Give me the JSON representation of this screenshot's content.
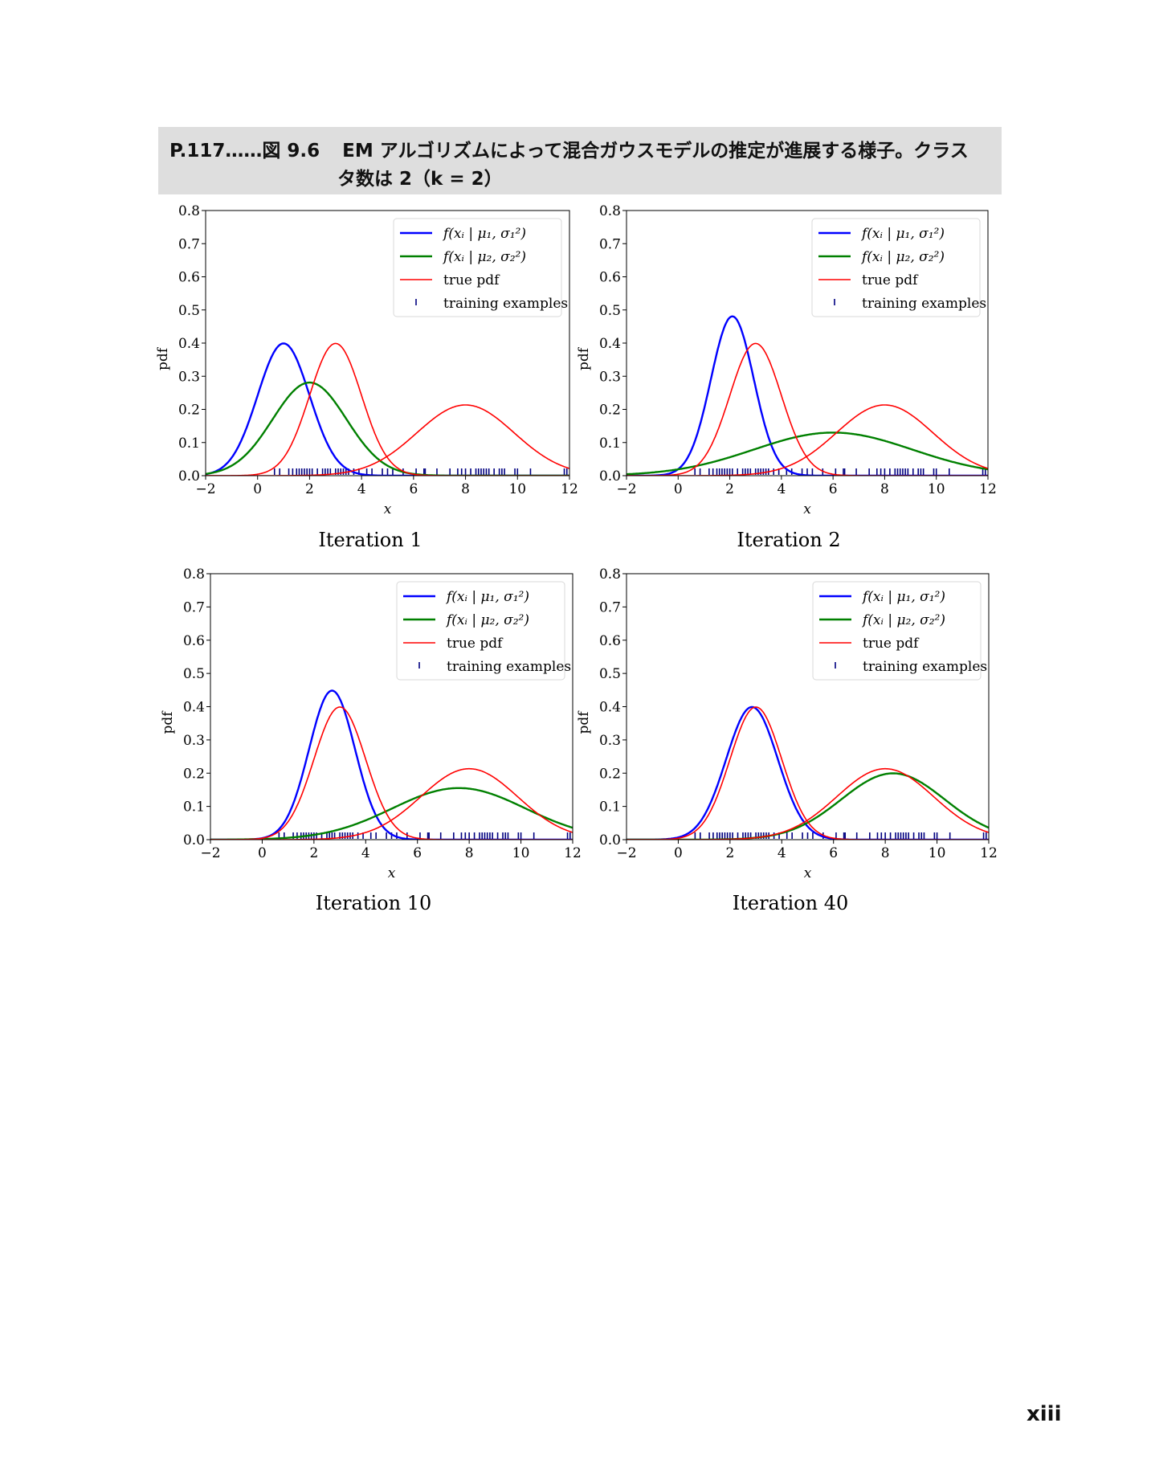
{
  "header": {
    "figure_ref": "P.117……図 9.6",
    "caption_line1": "EM アルゴリズムによって混合ガウスモデルの推定が進展する様子。クラス",
    "caption_line2": "タ数は 2（k = 2）"
  },
  "page_number": "xiii",
  "colors": {
    "component1": "#0000ff",
    "component2": "#008000",
    "true_pdf": "#ff0000",
    "training": "#000080"
  },
  "chart_data": [
    {
      "type": "line",
      "title": "Iteration 1",
      "xlabel": "x",
      "ylabel": "pdf",
      "xlim": [
        -2,
        12
      ],
      "ylim": [
        0,
        0.8
      ],
      "xticks": [
        "−2",
        "0",
        "2",
        "4",
        "6",
        "8",
        "10",
        "12"
      ],
      "yticks": [
        "0.0",
        "0.1",
        "0.2",
        "0.3",
        "0.4",
        "0.5",
        "0.6",
        "0.7",
        "0.8"
      ],
      "legend": {
        "placement": "top-right",
        "entries": [
          "f(xᵢ | μ₁, σ₁²)",
          "f(xᵢ | μ₂, σ₂²)",
          "true pdf",
          "training examples"
        ]
      },
      "series": [
        {
          "name": "f(xᵢ | μ₁, σ₁²)",
          "gaussians": [
            {
              "mean": 1.0,
              "sigma": 1.0
            }
          ]
        },
        {
          "name": "f(xᵢ | μ₂, σ₂²)",
          "gaussians": [
            {
              "mean": 2.0,
              "sigma": 1.42
            }
          ]
        },
        {
          "name": "true pdf",
          "gaussians": [
            {
              "mean": 3.0,
              "sigma": 1.0
            },
            {
              "mean": 8.0,
              "sigma": 1.87
            }
          ]
        }
      ]
    },
    {
      "type": "line",
      "title": "Iteration 2",
      "xlabel": "x",
      "ylabel": "pdf",
      "xlim": [
        -2,
        12
      ],
      "ylim": [
        0,
        0.8
      ],
      "xticks": [
        "−2",
        "0",
        "2",
        "4",
        "6",
        "8",
        "10",
        "12"
      ],
      "yticks": [
        "0.0",
        "0.1",
        "0.2",
        "0.3",
        "0.4",
        "0.5",
        "0.6",
        "0.7",
        "0.8"
      ],
      "legend": {
        "placement": "top-right",
        "entries": [
          "f(xᵢ | μ₁, σ₁²)",
          "f(xᵢ | μ₂, σ₂²)",
          "true pdf",
          "training examples"
        ]
      },
      "series": [
        {
          "name": "f(xᵢ | μ₁, σ₁²)",
          "gaussians": [
            {
              "mean": 2.1,
              "sigma": 0.83
            }
          ]
        },
        {
          "name": "f(xᵢ | μ₂, σ₂²)",
          "gaussians": [
            {
              "mean": 6.0,
              "sigma": 3.07
            }
          ]
        },
        {
          "name": "true pdf",
          "gaussians": [
            {
              "mean": 3.0,
              "sigma": 1.0
            },
            {
              "mean": 8.0,
              "sigma": 1.87
            }
          ]
        }
      ]
    },
    {
      "type": "line",
      "title": "Iteration 10",
      "xlabel": "x",
      "ylabel": "pdf",
      "xlim": [
        -2,
        12
      ],
      "ylim": [
        0,
        0.8
      ],
      "xticks": [
        "−2",
        "0",
        "2",
        "4",
        "6",
        "8",
        "10",
        "12"
      ],
      "yticks": [
        "0.0",
        "0.1",
        "0.2",
        "0.3",
        "0.4",
        "0.5",
        "0.6",
        "0.7",
        "0.8"
      ],
      "legend": {
        "placement": "top-right",
        "entries": [
          "f(xᵢ | μ₁, σ₁²)",
          "f(xᵢ | μ₂, σ₂²)",
          "true pdf",
          "training examples"
        ]
      },
      "series": [
        {
          "name": "f(xᵢ | μ₁, σ₁²)",
          "gaussians": [
            {
              "mean": 2.7,
              "sigma": 0.89
            }
          ]
        },
        {
          "name": "f(xᵢ | μ₂, σ₂²)",
          "gaussians": [
            {
              "mean": 7.6,
              "sigma": 2.57
            }
          ]
        },
        {
          "name": "true pdf",
          "gaussians": [
            {
              "mean": 3.0,
              "sigma": 1.0
            },
            {
              "mean": 8.0,
              "sigma": 1.87
            }
          ]
        }
      ]
    },
    {
      "type": "line",
      "title": "Iteration 40",
      "xlabel": "x",
      "ylabel": "pdf",
      "xlim": [
        -2,
        12
      ],
      "ylim": [
        0,
        0.8
      ],
      "xticks": [
        "−2",
        "0",
        "2",
        "4",
        "6",
        "8",
        "10",
        "12"
      ],
      "yticks": [
        "0.0",
        "0.1",
        "0.2",
        "0.3",
        "0.4",
        "0.5",
        "0.6",
        "0.7",
        "0.8"
      ],
      "legend": {
        "placement": "top-right",
        "entries": [
          "f(xᵢ | μ₁, σ₁²)",
          "f(xᵢ | μ₂, σ₂²)",
          "true pdf",
          "training examples"
        ]
      },
      "series": [
        {
          "name": "f(xᵢ | μ₁, σ₁²)",
          "gaussians": [
            {
              "mean": 2.85,
              "sigma": 1.0
            }
          ]
        },
        {
          "name": "f(xᵢ | μ₂, σ₂²)",
          "gaussians": [
            {
              "mean": 8.3,
              "sigma": 2.0
            }
          ]
        },
        {
          "name": "true pdf",
          "gaussians": [
            {
              "mean": 3.0,
              "sigma": 1.0
            },
            {
              "mean": 8.0,
              "sigma": 1.87
            }
          ]
        }
      ]
    }
  ],
  "training_examples": [
    0.65,
    0.85,
    1.2,
    1.35,
    1.5,
    1.6,
    1.7,
    1.8,
    1.9,
    2.0,
    2.1,
    2.3,
    2.5,
    2.6,
    2.7,
    2.8,
    3.0,
    3.1,
    3.2,
    3.3,
    3.4,
    3.5,
    3.7,
    3.9,
    4.2,
    4.4,
    4.8,
    5.0,
    5.2,
    5.6,
    6.1,
    6.4,
    6.45,
    6.9,
    7.4,
    7.7,
    7.85,
    8.0,
    8.2,
    8.4,
    8.5,
    8.6,
    8.7,
    8.8,
    8.9,
    9.1,
    9.3,
    9.4,
    9.5,
    9.9,
    10.0,
    10.5,
    11.8,
    11.9
  ]
}
